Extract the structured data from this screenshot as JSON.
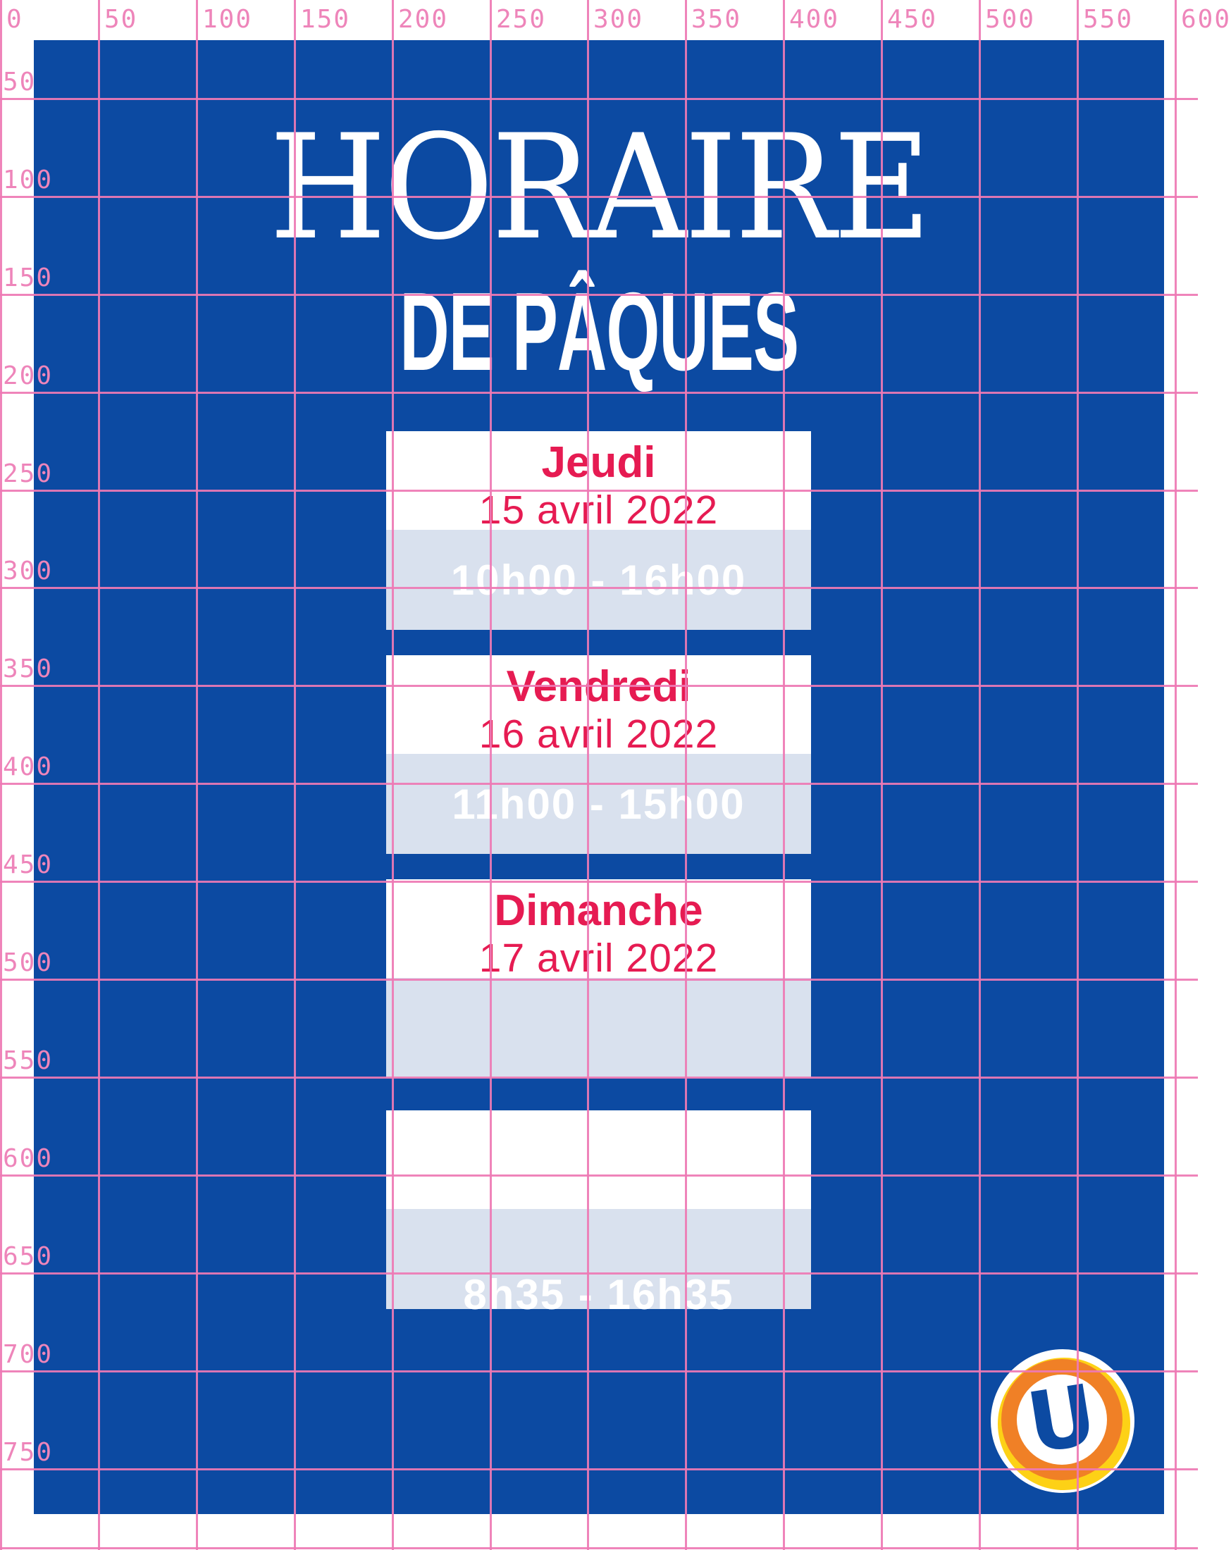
{
  "ruler": {
    "top_labels": [
      "0",
      "50",
      "100",
      "150",
      "200",
      "250",
      "300",
      "350",
      "400",
      "450",
      "500",
      "550",
      "600"
    ],
    "left_labels": [
      "50",
      "100",
      "150",
      "200",
      "250",
      "300",
      "350",
      "400",
      "450",
      "500",
      "550",
      "600",
      "650",
      "700",
      "750"
    ],
    "line_color": "#ee79b4",
    "label_color": "#ee85ba"
  },
  "poster": {
    "bg_color": "#0c4aa2",
    "band_color": "#d9e1ee",
    "accent_color": "#e61b52",
    "title_line1": "HORAIRE",
    "title_line2": "DE PÂQUES",
    "schedule": [
      {
        "day": "Jeudi",
        "date": "15 avril 2022",
        "hours": "10h00 - 16h00"
      },
      {
        "day": "Vendredi",
        "date": "16 avril 2022",
        "hours": "11h00 - 15h00"
      },
      {
        "day": "Dimanche",
        "date": "17 avril 2022",
        "hours": ""
      },
      {
        "day": "",
        "date": "",
        "hours": "8h35 - 16h35"
      }
    ],
    "logo": {
      "letter": "U",
      "orange": "#f08026",
      "yellow": "#fdd116",
      "blue": "#0c4aa2",
      "white": "#ffffff"
    }
  }
}
